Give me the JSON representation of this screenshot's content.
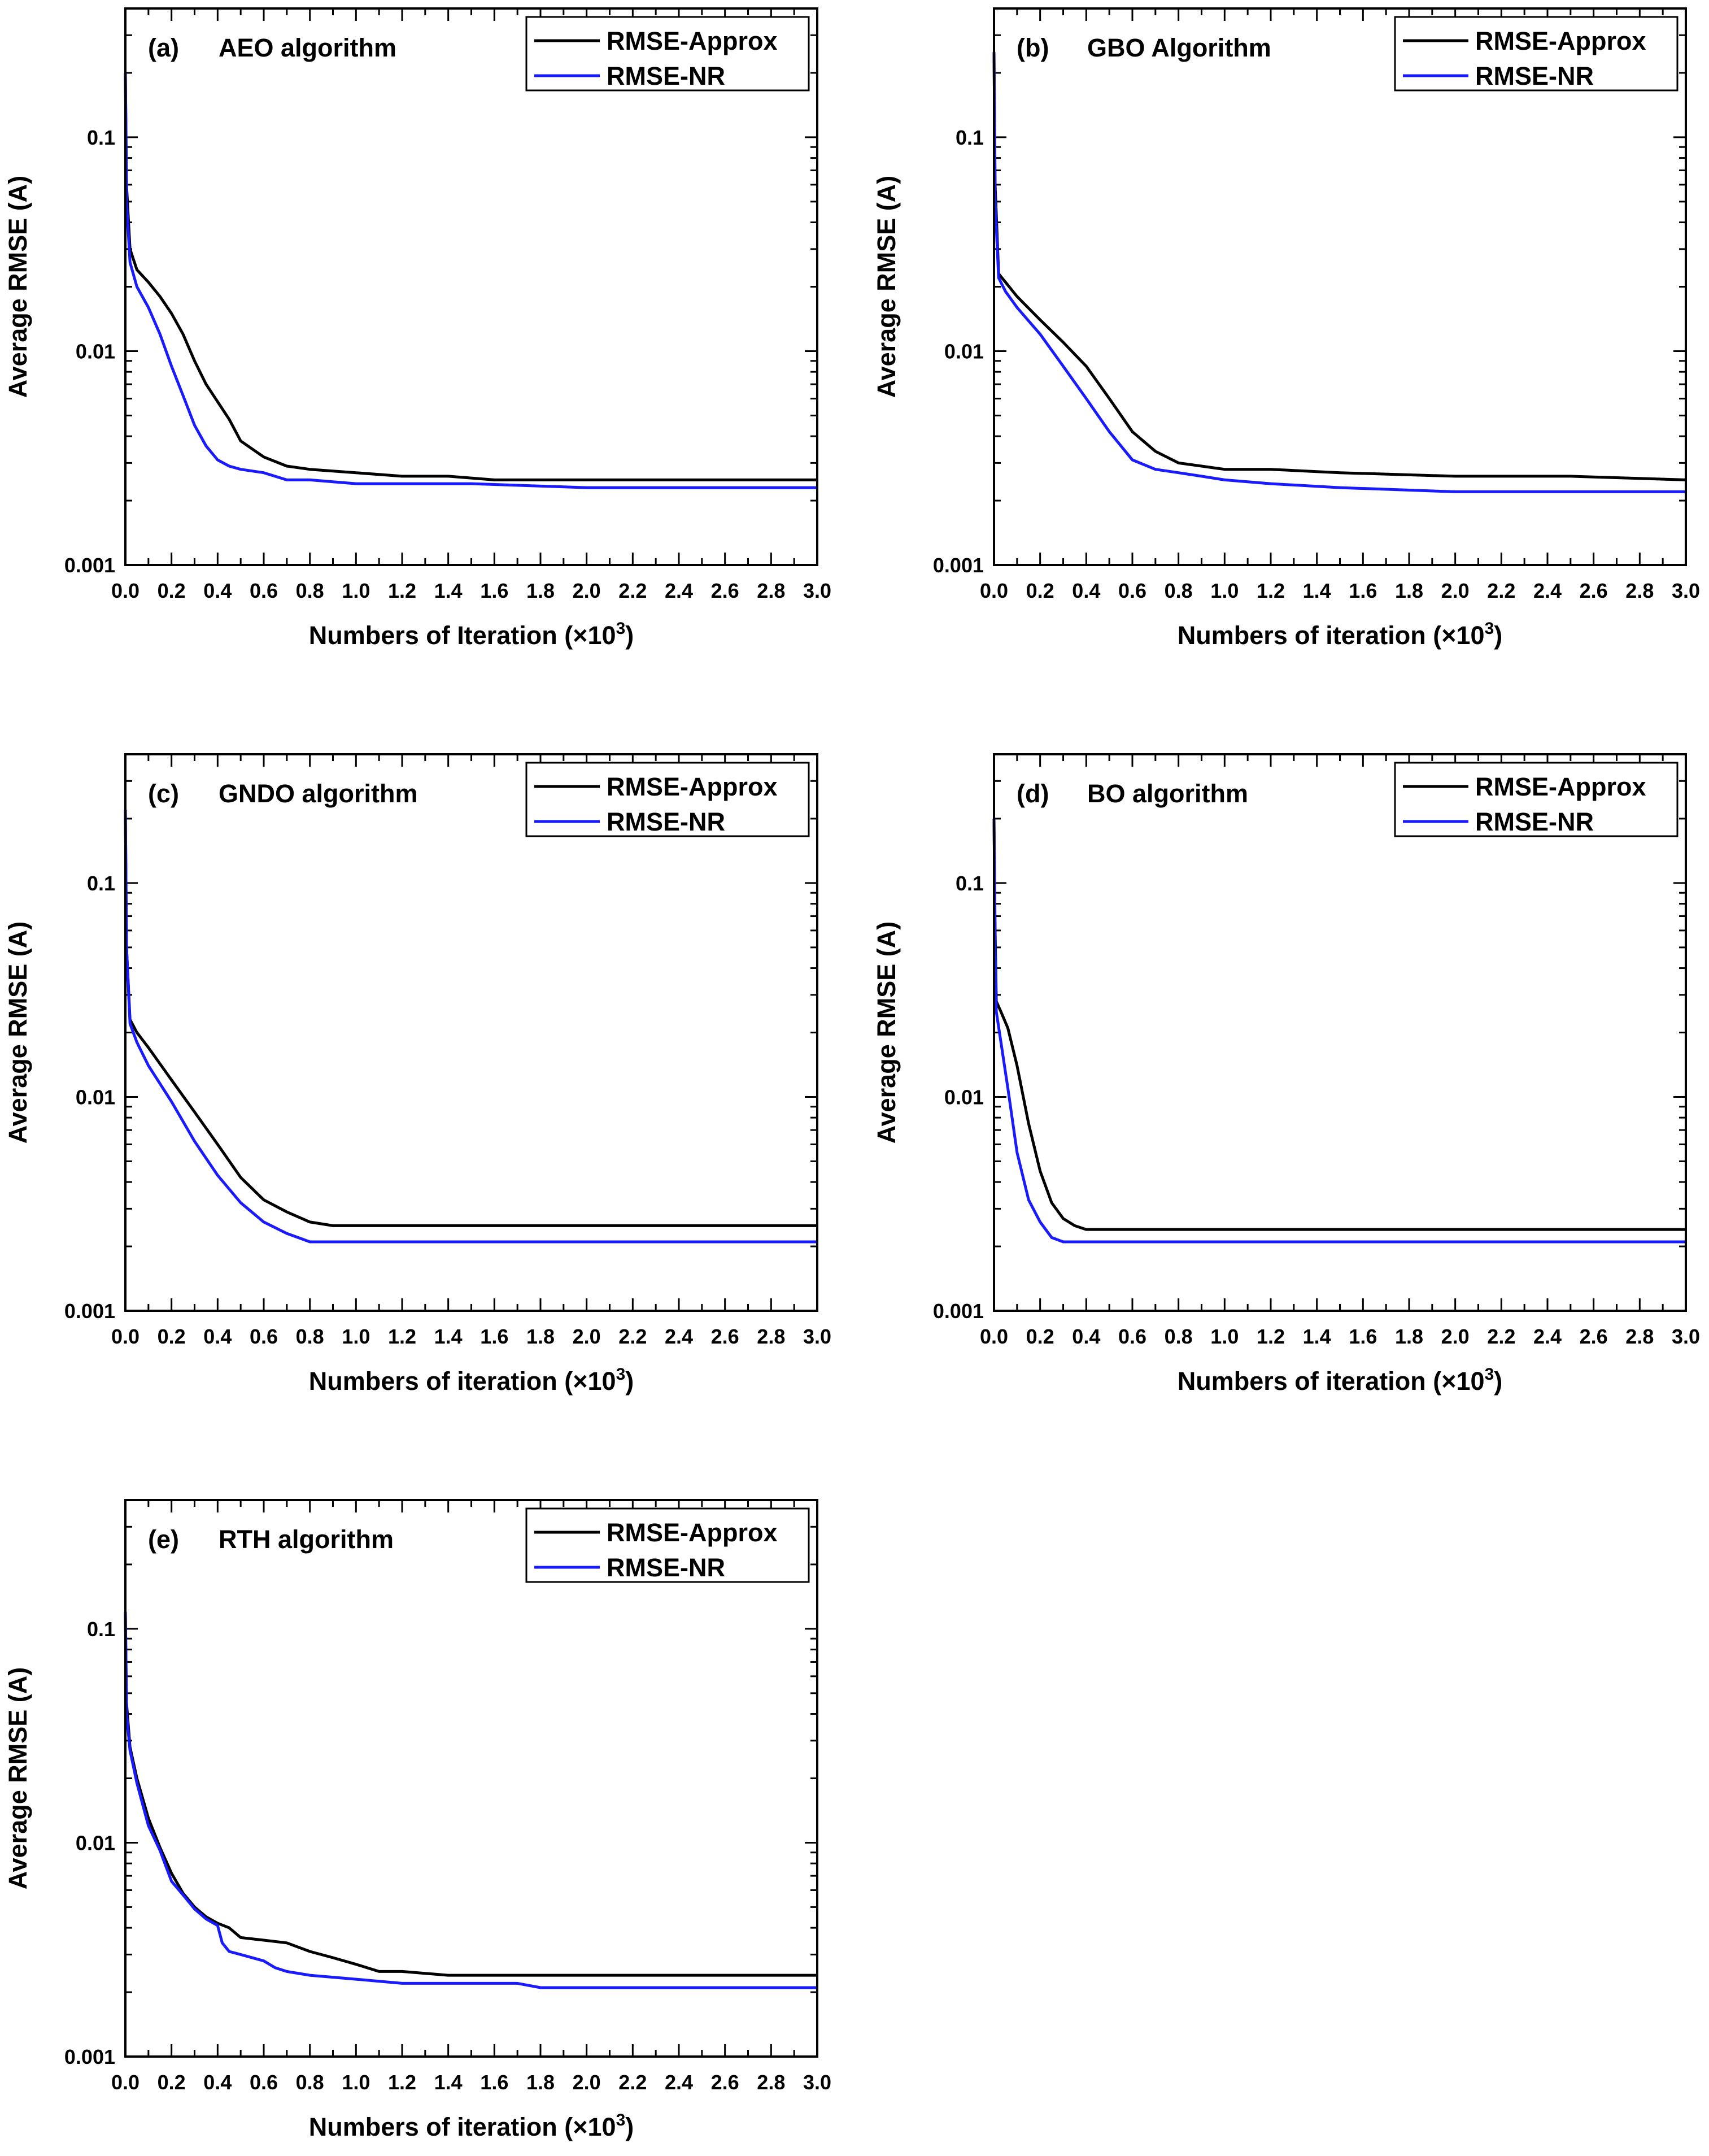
{
  "chart_data": [
    {
      "type": "line",
      "panel_label": "(a)",
      "title": "AEO algorithm",
      "xlabel": "Numbers of Iteration (×10",
      "xlabel_sup": "3",
      "xlabel_close": ")",
      "ylabel": "Average RMSE (A)",
      "yscale": "log",
      "xlim": [
        0,
        3.0
      ],
      "ylim": [
        0.001,
        0.4
      ],
      "y_ticks": [
        "0.001",
        "0.01",
        "0.1"
      ],
      "x_ticks": [
        "0.0",
        "0.2",
        "0.4",
        "0.6",
        "0.8",
        "1.0",
        "1.2",
        "1.4",
        "1.6",
        "1.8",
        "2.0",
        "2.2",
        "2.4",
        "2.6",
        "2.8",
        "3.0"
      ],
      "legend_position": "top-right",
      "series": [
        {
          "name": "RMSE-Approx",
          "color": "#000000",
          "x": [
            0,
            0.005,
            0.02,
            0.05,
            0.1,
            0.15,
            0.2,
            0.25,
            0.3,
            0.35,
            0.4,
            0.45,
            0.5,
            0.6,
            0.7,
            0.8,
            1.0,
            1.2,
            1.4,
            1.6,
            2.0,
            2.5,
            3.0
          ],
          "y": [
            0.2,
            0.06,
            0.03,
            0.024,
            0.021,
            0.018,
            0.015,
            0.012,
            0.009,
            0.007,
            0.0058,
            0.0048,
            0.0038,
            0.0032,
            0.0029,
            0.0028,
            0.0027,
            0.0026,
            0.0026,
            0.0025,
            0.0025,
            0.0025,
            0.0025
          ]
        },
        {
          "name": "RMSE-NR",
          "color": "#1a1aff",
          "x": [
            0,
            0.005,
            0.02,
            0.05,
            0.1,
            0.15,
            0.2,
            0.25,
            0.3,
            0.35,
            0.4,
            0.45,
            0.5,
            0.6,
            0.7,
            0.8,
            1.0,
            1.2,
            1.5,
            2.0,
            2.5,
            3.0
          ],
          "y": [
            0.2,
            0.05,
            0.026,
            0.02,
            0.016,
            0.012,
            0.0085,
            0.0062,
            0.0045,
            0.0036,
            0.0031,
            0.0029,
            0.0028,
            0.0027,
            0.0025,
            0.0025,
            0.0024,
            0.0024,
            0.0024,
            0.0023,
            0.0023,
            0.0023
          ]
        }
      ]
    },
    {
      "type": "line",
      "panel_label": "(b)",
      "title": "GBO Algorithm",
      "xlabel": "Numbers of iteration (×10",
      "xlabel_sup": "3",
      "xlabel_close": ")",
      "ylabel": "Average RMSE (A)",
      "yscale": "log",
      "xlim": [
        0,
        3.0
      ],
      "ylim": [
        0.001,
        0.4
      ],
      "y_ticks": [
        "0.001",
        "0.01",
        "0.1"
      ],
      "x_ticks": [
        "0.0",
        "0.2",
        "0.4",
        "0.6",
        "0.8",
        "1.0",
        "1.2",
        "1.4",
        "1.6",
        "1.8",
        "2.0",
        "2.2",
        "2.4",
        "2.6",
        "2.8",
        "3.0"
      ],
      "legend_position": "top-right",
      "series": [
        {
          "name": "RMSE-Approx",
          "color": "#000000",
          "x": [
            0,
            0.005,
            0.02,
            0.05,
            0.1,
            0.2,
            0.3,
            0.4,
            0.5,
            0.6,
            0.7,
            0.8,
            0.9,
            1.0,
            1.2,
            1.5,
            2.0,
            2.5,
            3.0
          ],
          "y": [
            0.25,
            0.06,
            0.023,
            0.021,
            0.018,
            0.014,
            0.011,
            0.0085,
            0.006,
            0.0042,
            0.0034,
            0.003,
            0.0029,
            0.0028,
            0.0028,
            0.0027,
            0.0026,
            0.0026,
            0.0025
          ]
        },
        {
          "name": "RMSE-NR",
          "color": "#1a1aff",
          "x": [
            0,
            0.005,
            0.02,
            0.05,
            0.1,
            0.2,
            0.3,
            0.4,
            0.5,
            0.6,
            0.7,
            0.8,
            0.9,
            1.0,
            1.2,
            1.5,
            2.0,
            2.5,
            3.0
          ],
          "y": [
            0.25,
            0.05,
            0.022,
            0.019,
            0.016,
            0.012,
            0.0085,
            0.006,
            0.0042,
            0.0031,
            0.0028,
            0.0027,
            0.0026,
            0.0025,
            0.0024,
            0.0023,
            0.0022,
            0.0022,
            0.0022
          ]
        }
      ]
    },
    {
      "type": "line",
      "panel_label": "(c)",
      "title": "GNDO algorithm",
      "xlabel": "Numbers of iteration (×10",
      "xlabel_sup": "3",
      "xlabel_close": ")",
      "ylabel": "Average RMSE (A)",
      "yscale": "log",
      "xlim": [
        0,
        3.0
      ],
      "ylim": [
        0.001,
        0.4
      ],
      "y_ticks": [
        "0.001",
        "0.01",
        "0.1"
      ],
      "x_ticks": [
        "0.0",
        "0.2",
        "0.4",
        "0.6",
        "0.8",
        "1.0",
        "1.2",
        "1.4",
        "1.6",
        "1.8",
        "2.0",
        "2.2",
        "2.4",
        "2.6",
        "2.8",
        "3.0"
      ],
      "legend_position": "top-right",
      "series": [
        {
          "name": "RMSE-Approx",
          "color": "#000000",
          "x": [
            0,
            0.005,
            0.02,
            0.05,
            0.1,
            0.2,
            0.3,
            0.4,
            0.5,
            0.6,
            0.7,
            0.8,
            0.9,
            1.0,
            1.5,
            2.0,
            2.5,
            3.0
          ],
          "y": [
            0.22,
            0.05,
            0.023,
            0.02,
            0.017,
            0.012,
            0.0085,
            0.006,
            0.0042,
            0.0033,
            0.0029,
            0.0026,
            0.0025,
            0.0025,
            0.0025,
            0.0025,
            0.0025,
            0.0025
          ]
        },
        {
          "name": "RMSE-NR",
          "color": "#1a1aff",
          "x": [
            0,
            0.005,
            0.02,
            0.05,
            0.1,
            0.2,
            0.3,
            0.4,
            0.5,
            0.6,
            0.7,
            0.8,
            0.9,
            1.0,
            1.5,
            2.0,
            2.5,
            3.0
          ],
          "y": [
            0.22,
            0.05,
            0.022,
            0.018,
            0.014,
            0.0095,
            0.0062,
            0.0043,
            0.0032,
            0.0026,
            0.0023,
            0.0021,
            0.0021,
            0.0021,
            0.0021,
            0.0021,
            0.0021,
            0.0021
          ]
        }
      ]
    },
    {
      "type": "line",
      "panel_label": "(d)",
      "title": "BO algorithm",
      "xlabel": "Numbers of iteration (×10",
      "xlabel_sup": "3",
      "xlabel_close": ")",
      "ylabel": "Average RMSE (A)",
      "yscale": "log",
      "xlim": [
        0,
        3.0
      ],
      "ylim": [
        0.001,
        0.4
      ],
      "y_ticks": [
        "0.001",
        "0.01",
        "0.1"
      ],
      "x_ticks": [
        "0.0",
        "0.2",
        "0.4",
        "0.6",
        "0.8",
        "1.0",
        "1.2",
        "1.4",
        "1.6",
        "1.8",
        "2.0",
        "2.2",
        "2.4",
        "2.6",
        "2.8",
        "3.0"
      ],
      "legend_position": "top-right",
      "series": [
        {
          "name": "RMSE-Approx",
          "color": "#000000",
          "x": [
            0,
            0.005,
            0.01,
            0.03,
            0.06,
            0.1,
            0.15,
            0.2,
            0.25,
            0.3,
            0.35,
            0.4,
            0.5,
            0.7,
            1.0,
            2.0,
            3.0
          ],
          "y": [
            0.2,
            0.06,
            0.028,
            0.025,
            0.021,
            0.014,
            0.0075,
            0.0045,
            0.0032,
            0.0027,
            0.0025,
            0.0024,
            0.0024,
            0.0024,
            0.0024,
            0.0024,
            0.0024
          ]
        },
        {
          "name": "RMSE-NR",
          "color": "#1a1aff",
          "x": [
            0,
            0.005,
            0.01,
            0.03,
            0.06,
            0.1,
            0.15,
            0.2,
            0.25,
            0.3,
            0.35,
            0.4,
            0.5,
            0.7,
            1.0,
            2.0,
            3.0
          ],
          "y": [
            0.2,
            0.05,
            0.025,
            0.018,
            0.011,
            0.0055,
            0.0033,
            0.0026,
            0.0022,
            0.0021,
            0.0021,
            0.0021,
            0.0021,
            0.0021,
            0.0021,
            0.0021,
            0.0021
          ]
        }
      ]
    },
    {
      "type": "line",
      "panel_label": "(e)",
      "title": "RTH algorithm",
      "xlabel": "Numbers of iteration (×10",
      "xlabel_sup": "3",
      "xlabel_close": ")",
      "ylabel": "Average RMSE (A)",
      "yscale": "log",
      "xlim": [
        0,
        3.0
      ],
      "ylim": [
        0.001,
        0.4
      ],
      "y_ticks": [
        "0.001",
        "0.01",
        "0.1"
      ],
      "x_ticks": [
        "0.0",
        "0.2",
        "0.4",
        "0.6",
        "0.8",
        "1.0",
        "1.2",
        "1.4",
        "1.6",
        "1.8",
        "2.0",
        "2.2",
        "2.4",
        "2.6",
        "2.8",
        "3.0"
      ],
      "legend_position": "top-right",
      "series": [
        {
          "name": "RMSE-Approx",
          "color": "#000000",
          "x": [
            0,
            0.005,
            0.02,
            0.05,
            0.1,
            0.15,
            0.2,
            0.25,
            0.3,
            0.35,
            0.4,
            0.45,
            0.5,
            0.6,
            0.7,
            0.8,
            0.9,
            1.0,
            1.1,
            1.2,
            1.4,
            1.6,
            2.0,
            2.5,
            3.0
          ],
          "y": [
            0.12,
            0.045,
            0.028,
            0.02,
            0.013,
            0.0095,
            0.0072,
            0.0058,
            0.005,
            0.0045,
            0.0042,
            0.004,
            0.0036,
            0.0035,
            0.0034,
            0.0031,
            0.0029,
            0.0027,
            0.0025,
            0.0025,
            0.0024,
            0.0024,
            0.0024,
            0.0024,
            0.0024
          ]
        },
        {
          "name": "RMSE-NR",
          "color": "#1a1aff",
          "x": [
            0,
            0.005,
            0.02,
            0.05,
            0.1,
            0.15,
            0.2,
            0.25,
            0.3,
            0.35,
            0.4,
            0.42,
            0.45,
            0.5,
            0.6,
            0.65,
            0.7,
            0.8,
            1.0,
            1.2,
            1.5,
            1.7,
            1.8,
            2.0,
            2.5,
            3.0
          ],
          "y": [
            0.12,
            0.04,
            0.027,
            0.019,
            0.012,
            0.0092,
            0.0066,
            0.0057,
            0.0049,
            0.0044,
            0.0041,
            0.0034,
            0.0031,
            0.003,
            0.0028,
            0.0026,
            0.0025,
            0.0024,
            0.0023,
            0.0022,
            0.0022,
            0.0022,
            0.0021,
            0.0021,
            0.0021,
            0.0021
          ]
        }
      ]
    }
  ]
}
